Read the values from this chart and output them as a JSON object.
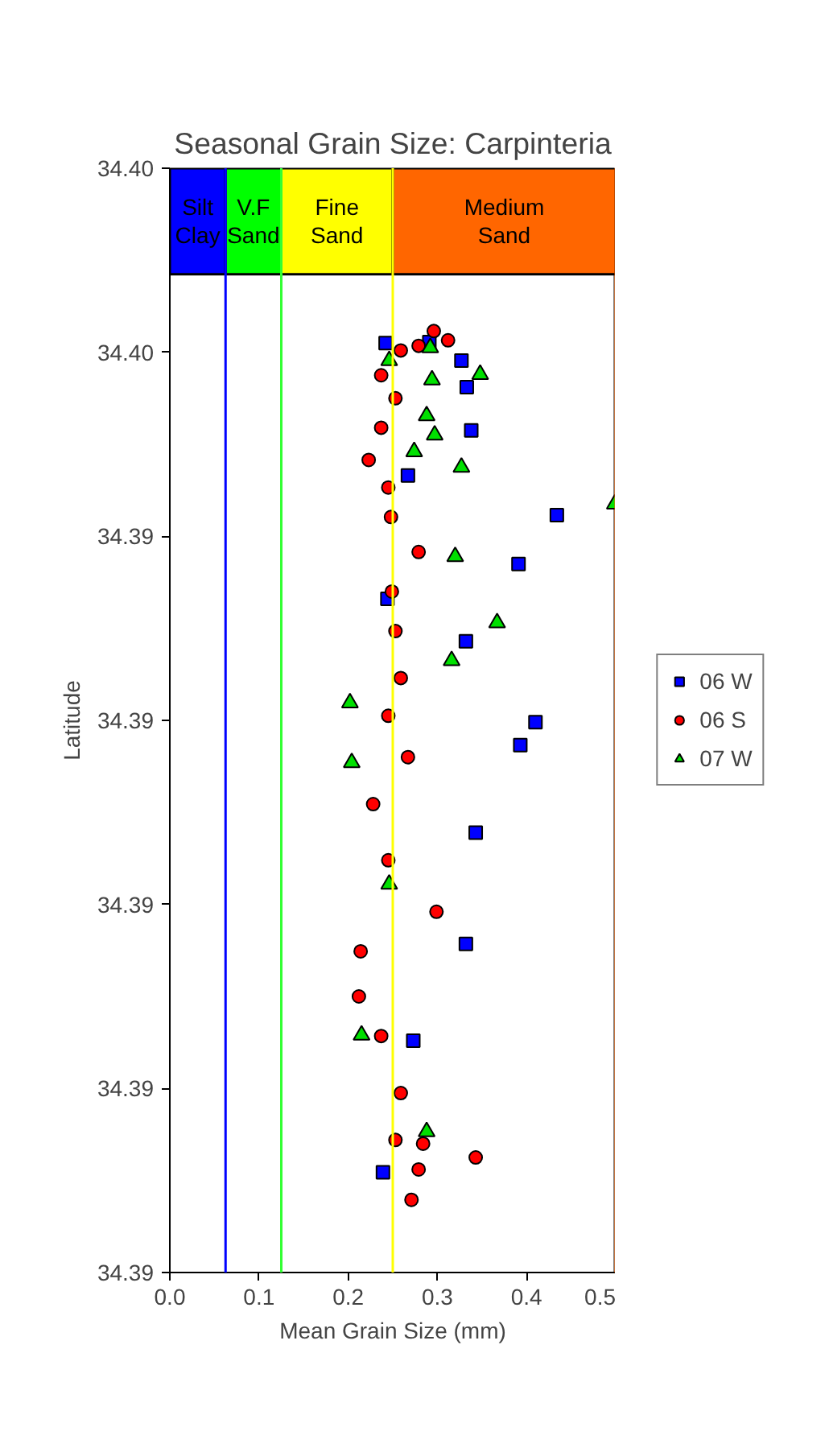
{
  "chart_data": {
    "type": "scatter",
    "title": "Seasonal Grain Size: Carpinteria",
    "xlabel": "Mean Grain Size (mm)",
    "ylabel": "Latitude",
    "xlim": [
      0,
      0.5
    ],
    "xticks": [
      {
        "value": 0,
        "label": "0.0"
      },
      0.1,
      0.2,
      0.3,
      0.4,
      0.5
    ],
    "ylim": [
      34.386,
      34.398
    ],
    "yticks": [
      {
        "value": 34.386,
        "label": "34.39"
      },
      {
        "value": 34.388,
        "label": "34.39"
      },
      {
        "value": 34.39,
        "label": "34.39"
      },
      {
        "value": 34.392,
        "label": "34.39"
      },
      {
        "value": 34.394,
        "label": "34.39"
      },
      {
        "value": 34.396,
        "label": "34.40"
      },
      {
        "value": 34.398,
        "label": "34.40"
      }
    ],
    "grid": false,
    "legend": "right",
    "bands": [
      {
        "axis": "x",
        "from": 0,
        "to": 0.0625,
        "label": "Silt Clay",
        "color": "#0000ff"
      },
      {
        "axis": "x",
        "from": 0.0625,
        "to": 0.125,
        "label": "V.F Sand",
        "color": "#00ff00"
      },
      {
        "axis": "x",
        "from": 0.125,
        "to": 0.25,
        "label": "Fine Sand",
        "color": "#ffff00"
      },
      {
        "axis": "x",
        "from": 0.25,
        "to": 0.5,
        "label": "Medium Sand",
        "color": "#ff6600"
      }
    ],
    "ref_lines": [
      {
        "axis": "x",
        "value": 0.0625,
        "color": "#0000ff"
      },
      {
        "axis": "x",
        "value": 0.125,
        "color": "#33ff33"
      },
      {
        "axis": "x",
        "value": 0.25,
        "color": "#ffff00"
      },
      {
        "axis": "x",
        "value": 0.5,
        "color": "#ff6600"
      }
    ],
    "series": [
      {
        "name": "06 W",
        "color": "#0000ff",
        "marker": "square",
        "x": [
          0.242,
          0.291,
          0.327,
          0.333,
          0.338,
          0.267,
          0.434,
          0.391,
          0.244,
          0.332,
          0.41,
          0.393,
          0.343,
          0.332,
          0.273,
          0.239
        ],
        "values": [
          34.3961,
          34.39611,
          34.39591,
          34.39562,
          34.39515,
          34.39466,
          34.39423,
          34.3937,
          34.39332,
          34.39286,
          34.39198,
          34.39173,
          34.39078,
          34.38957,
          34.38852,
          34.38709
        ]
      },
      {
        "name": "06 S",
        "color": "#ff0000",
        "marker": "circle",
        "x": [
          0.296,
          0.312,
          0.279,
          0.259,
          0.237,
          0.253,
          0.237,
          0.223,
          0.245,
          0.248,
          0.279,
          0.249,
          0.253,
          0.259,
          0.245,
          0.267,
          0.228,
          0.245,
          0.299,
          0.214,
          0.212,
          0.237,
          0.259,
          0.253,
          0.284,
          0.343,
          0.279,
          0.271
        ],
        "values": [
          34.39623,
          34.39613,
          34.39607,
          34.39602,
          34.39575,
          34.3955,
          34.39518,
          34.39483,
          34.39453,
          34.39421,
          34.39383,
          34.3934,
          34.39297,
          34.39246,
          34.39205,
          34.3916,
          34.39109,
          34.39048,
          34.38992,
          34.38949,
          34.389,
          34.38857,
          34.38795,
          34.38744,
          34.3874,
          34.38725,
          34.38712,
          34.38679
        ]
      },
      {
        "name": "07 W",
        "color": "#00e000",
        "marker": "triangle",
        "x": [
          0.246,
          0.292,
          0.348,
          0.294,
          0.288,
          0.297,
          0.274,
          0.327,
          0.499,
          0.32,
          0.367,
          0.316,
          0.202,
          0.204,
          0.246,
          0.215,
          0.288
        ],
        "values": [
          34.39591,
          34.39605,
          34.39576,
          34.3957,
          34.39531,
          34.3951,
          34.39492,
          34.39475,
          34.39435,
          34.39378,
          34.39306,
          34.39265,
          34.39219,
          34.39154,
          34.39022,
          34.38858,
          34.38753
        ]
      }
    ]
  }
}
